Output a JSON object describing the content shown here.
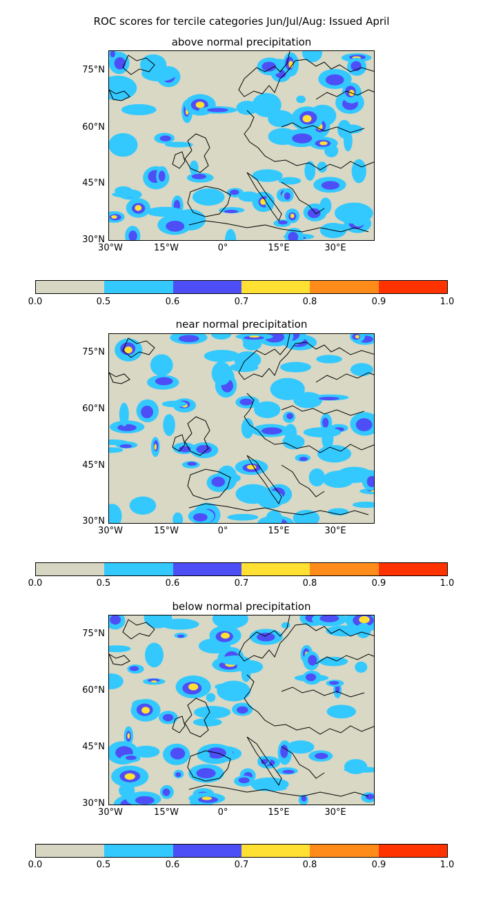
{
  "title": "ROC scores for tercile categories Jun/Jul/Aug: Issued April",
  "panels": [
    {
      "title": "above normal precipitation"
    },
    {
      "title": "near normal precipitation"
    },
    {
      "title": "below normal precipitation"
    }
  ],
  "lat_labels": [
    "75°N",
    "60°N",
    "45°N",
    "30°N"
  ],
  "lon_labels": [
    "30°W",
    "15°W",
    "0°",
    "15°E",
    "30°E"
  ],
  "colorbar": {
    "ticks": [
      "0.0",
      "0.5",
      "0.6",
      "0.7",
      "0.8",
      "0.9",
      "1.0"
    ],
    "colors": [
      "#d6d6c2",
      "#33c9ff",
      "#4e4ef7",
      "#ffe033",
      "#ff8c1a",
      "#ff3300"
    ]
  },
  "colors": {
    "background": "#d8d8c4",
    "coast": "#000000"
  }
}
